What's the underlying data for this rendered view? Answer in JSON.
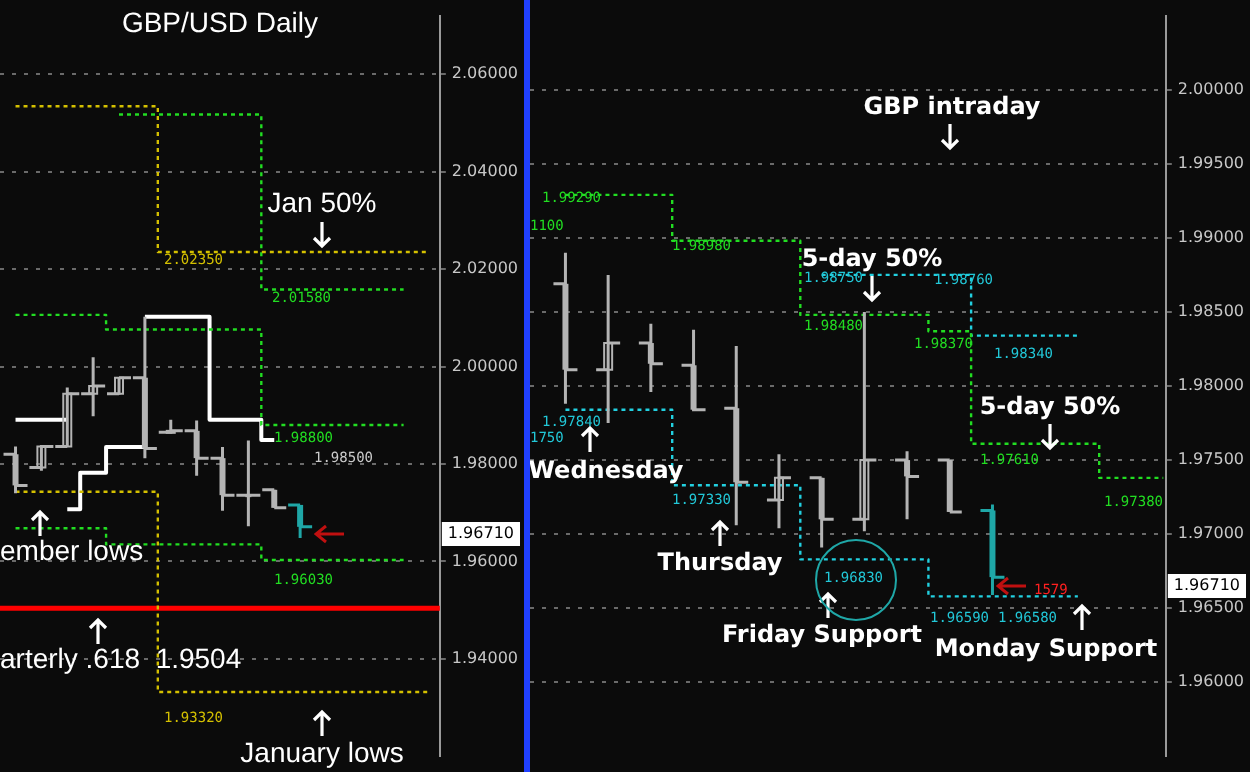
{
  "chart_data": [
    {
      "type": "candlestick",
      "title": "GBP/USD Daily",
      "categories": [
        null,
        null,
        null,
        null,
        null,
        null,
        null,
        null,
        null,
        null,
        null,
        null,
        null,
        null,
        null,
        null,
        null
      ],
      "ohlc": [
        [
          1.982,
          1.9836,
          1.974,
          1.9756
        ],
        [
          1.9793,
          1.9839,
          1.9786,
          1.9836
        ],
        [
          1.9836,
          1.9957,
          1.9836,
          1.9944
        ],
        [
          1.9944,
          2.0019,
          1.9898,
          1.996
        ],
        [
          1.9944,
          1.9977,
          1.9942,
          1.9977
        ],
        [
          1.9977,
          2.0102,
          1.9812,
          1.9832
        ],
        [
          1.9865,
          1.9891,
          1.9862,
          1.9868
        ],
        [
          1.9868,
          1.9889,
          1.9776,
          1.9812
        ],
        [
          1.9812,
          1.9835,
          1.9704,
          1.9736
        ],
        [
          1.9736,
          1.9848,
          1.9672,
          1.9736
        ],
        [
          1.9747,
          1.9747,
          1.971,
          1.971
        ],
        [
          1.9716,
          1.9716,
          1.9648,
          1.9671
        ],
        null,
        null,
        null,
        null,
        null
      ],
      "colors": [
        "#b4b4b4",
        "#b4b4b4",
        "#b4b4b4",
        "#b4b4b4",
        "#b4b4b4",
        "#b4b4b4",
        "#b4b4b4",
        "#b4b4b4",
        "#b4b4b4",
        "#b4b4b4",
        "#b4b4b4",
        "#1fa7a7",
        null,
        null,
        null,
        null,
        null
      ],
      "series": [
        {
          "type": "step",
          "color": "#d4c000",
          "line_style": "dotted",
          "values": [
            2.0534,
            2.0534,
            2.0534,
            2.0534,
            2.0534,
            2.0534,
            2.0235,
            2.0235,
            2.0235,
            2.0235,
            2.0235,
            2.0235,
            2.0235,
            2.0235,
            2.0235,
            2.0235,
            2.0235
          ]
        },
        {
          "type": "step",
          "color": "#22dd22",
          "line_style": "dotted",
          "values": [
            null,
            null,
            null,
            null,
            2.0517,
            2.0517,
            2.0517,
            2.0517,
            2.0517,
            2.0517,
            2.0158,
            2.0158,
            2.0158,
            2.0158,
            2.0158,
            2.0158,
            null
          ]
        },
        {
          "type": "step",
          "color": "#22dd22",
          "line_style": "dotted",
          "values": [
            2.0106,
            2.0106,
            2.0106,
            2.0106,
            2.0076,
            2.0076,
            2.0076,
            2.0076,
            2.0076,
            2.0076,
            1.988,
            1.988,
            1.988,
            1.988,
            1.988,
            1.988,
            null
          ]
        },
        {
          "type": "step",
          "color": "#d4c000",
          "line_style": "dotted",
          "values": [
            1.9743,
            1.9743,
            1.9743,
            1.9743,
            1.9743,
            1.9743,
            1.9332,
            1.9332,
            1.9332,
            1.9332,
            1.9332,
            1.9332,
            1.9332,
            1.9332,
            1.9332,
            1.9332,
            1.9332
          ]
        },
        {
          "type": "step",
          "color": "#22dd22",
          "line_style": "dotted",
          "values": [
            1.9668,
            1.9668,
            1.9668,
            1.9668,
            1.9635,
            1.9635,
            1.9635,
            1.9635,
            1.9635,
            1.9635,
            1.9603,
            1.9603,
            1.9603,
            1.9603,
            1.9603,
            1.9603,
            null
          ]
        },
        {
          "type": "step",
          "color": "#ffffff",
          "line_style": "solid",
          "values": [
            1.9891,
            1.9891,
            1.9891,
            null,
            null,
            2.0102,
            2.0102,
            2.0102,
            1.9891,
            1.9891,
            1.9849,
            null,
            null,
            null,
            null,
            null,
            null
          ]
        },
        {
          "type": "step",
          "color": "#ffffff",
          "line_style": "solid",
          "values": [
            null,
            null,
            1.9707,
            1.9782,
            1.9835,
            1.9835,
            null,
            null,
            null,
            null,
            null,
            null,
            null,
            null,
            null,
            null,
            null
          ]
        }
      ],
      "ref_lines": [
        {
          "axis": "y",
          "value": 1.9504,
          "color": "#ff0000",
          "line_style": "solid"
        }
      ],
      "ylim": [
        1.92,
        2.072
      ],
      "yticks": [
        {
          "value": 1.94,
          "label": "1.94000"
        },
        {
          "value": 1.96,
          "label": "1.96000"
        },
        {
          "value": 1.98,
          "label": "1.98000"
        },
        {
          "value": 2.0,
          "label": "2.00000"
        },
        {
          "value": 2.02,
          "label": "2.02000"
        },
        {
          "value": 2.04,
          "label": "2.04000"
        },
        {
          "value": 2.06,
          "label": "2.06000"
        }
      ],
      "grid": "y",
      "tick_labels": "y",
      "annotations": [
        "Jan 50%",
        "2.02350",
        "2.01580",
        "1.98800",
        "1.98500",
        "1.96030",
        "1.93320",
        "ember lows",
        "arterly .618  1.9504",
        "January lows",
        "1.96710"
      ]
    },
    {
      "type": "candlestick",
      "categories": [
        null,
        null,
        null,
        null,
        null,
        null,
        null,
        null,
        null,
        null,
        null,
        null,
        null,
        null,
        null
      ],
      "ohlc": [
        [
          1.9869,
          1.989,
          1.9788,
          1.9811
        ],
        [
          1.9811,
          1.9875,
          1.9775,
          1.9829
        ],
        [
          1.9829,
          1.9842,
          1.9796,
          1.9815
        ],
        [
          1.9814,
          1.9838,
          1.9783,
          1.9784
        ],
        [
          1.9785,
          1.9827,
          1.9706,
          1.9735
        ],
        [
          1.9723,
          1.9754,
          1.9704,
          1.9738
        ],
        [
          1.9738,
          1.9738,
          1.9691,
          1.971
        ],
        [
          1.971,
          1.985,
          1.9702,
          1.975
        ],
        [
          1.975,
          1.9756,
          1.971,
          1.9739
        ],
        [
          1.975,
          1.975,
          1.9715,
          1.9715
        ],
        [
          1.9716,
          1.972,
          1.9659,
          1.9671
        ],
        null,
        null,
        null,
        null
      ],
      "colors": [
        "#b4b4b4",
        "#b4b4b4",
        "#b4b4b4",
        "#b4b4b4",
        "#b4b4b4",
        "#b4b4b4",
        "#b4b4b4",
        "#b4b4b4",
        "#b4b4b4",
        "#b4b4b4",
        "#1fa7a7",
        null,
        null,
        null,
        null
      ],
      "series": [
        {
          "type": "step",
          "color": "#22dd22",
          "line_style": "dotted",
          "values": [
            1.9929,
            1.9929,
            1.9929,
            1.9898,
            1.9898,
            1.9898,
            1.9848,
            1.9848,
            1.9848,
            1.9837,
            1.9761,
            1.9761,
            1.9761,
            1.9738,
            1.9738
          ]
        },
        {
          "type": "step",
          "color": "#22d0e0",
          "line_style": "dotted",
          "values": [
            1.9784,
            1.9784,
            1.9784,
            1.9733,
            1.9733,
            1.9733,
            1.9683,
            1.9683,
            1.9683,
            1.9658,
            1.9658,
            1.9658,
            1.9658,
            null,
            null
          ]
        },
        {
          "type": "step",
          "color": "#22d0e0",
          "line_style": "dotted",
          "values": [
            null,
            null,
            null,
            null,
            null,
            null,
            1.9875,
            1.9875,
            1.9875,
            1.9875,
            1.9834,
            1.9834,
            1.9834,
            null,
            null
          ]
        }
      ],
      "ylim": [
        1.955,
        2.005
      ],
      "yticks": [
        {
          "value": 1.96,
          "label": "1.96000"
        },
        {
          "value": 1.965,
          "label": "1.96500"
        },
        {
          "value": 1.97,
          "label": "1.97000"
        },
        {
          "value": 1.975,
          "label": "1.97500"
        },
        {
          "value": 1.98,
          "label": "1.98000"
        },
        {
          "value": 1.985,
          "label": "1.98500"
        },
        {
          "value": 1.99,
          "label": "1.99000"
        },
        {
          "value": 1.995,
          "label": "1.99500"
        },
        {
          "value": 2.0,
          "label": "2.00000"
        }
      ],
      "grid": "y",
      "tick_labels": "y",
      "annotations": [
        "GBP intraday",
        "5-day 50%",
        "5-day 50%",
        "Wednesday",
        "Thursday",
        "Friday Support",
        "Monday Support",
        "1.99290",
        "1100",
        "1.98980",
        "1.97840",
        "1750",
        "1.97330",
        "1.98750",
        "1.98480",
        "1.98760",
        "1.98370",
        "1.98340",
        "1.97610",
        "1.97380",
        "1.96830",
        "1.96590",
        "1.96580",
        "1579",
        "1.96710"
      ]
    }
  ]
}
